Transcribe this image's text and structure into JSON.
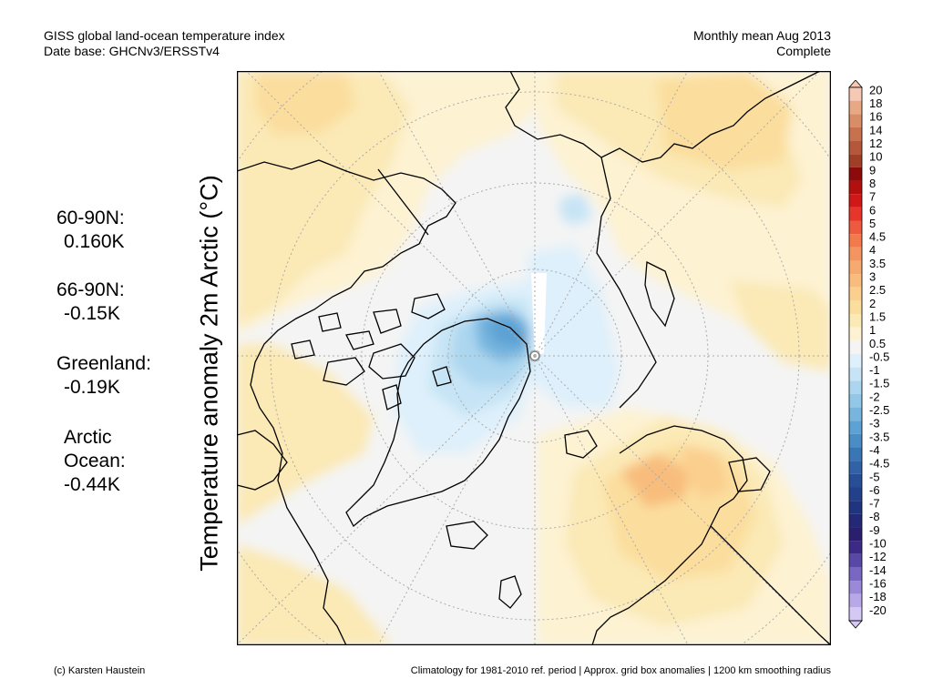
{
  "header": {
    "title": "GISS global land-ocean temperature index",
    "database": "Date base: GHCNv3/ERSSTv4",
    "period": "Monthly mean Aug 2013",
    "status": "Complete"
  },
  "stats": [
    {
      "label": "60-90N:",
      "value": "0.160K"
    },
    {
      "label": "66-90N:",
      "value": "-0.15K"
    },
    {
      "label": "Greenland:",
      "value": "-0.19K"
    },
    {
      "label1": "Arctic",
      "label2": "Ocean:",
      "value": "-0.44K"
    }
  ],
  "ylabel": "Temperature anomaly 2m Arctic (°C)",
  "colorbar": {
    "labels": [
      "20",
      "18",
      "16",
      "14",
      "12",
      "10",
      "9",
      "8",
      "7",
      "6",
      "5",
      "4.5",
      "4",
      "3.5",
      "3",
      "2.5",
      "2",
      "1.5",
      "1",
      "0.5",
      "-0.5",
      "-1",
      "-1.5",
      "-2",
      "-2.5",
      "-3",
      "-3.5",
      "-4",
      "-4.5",
      "-5",
      "-6",
      "-7",
      "-8",
      "-9",
      "-10",
      "-12",
      "-14",
      "-16",
      "-18",
      "-20"
    ],
    "colors": [
      "#f6c9b5",
      "#e7a886",
      "#d98d67",
      "#c8714d",
      "#b4573a",
      "#9f3f28",
      "#8c0a0a",
      "#b30f0f",
      "#d11818",
      "#e6362b",
      "#ee5a3f",
      "#f27a4c",
      "#f49561",
      "#f6aa70",
      "#f8bd7d",
      "#fbcf8e",
      "#fbde9e",
      "#fbe9b6",
      "#fdf2d2",
      "#f4f4f4",
      "#def0fb",
      "#c6e4f5",
      "#acd6ef",
      "#92c7e8",
      "#77b5df",
      "#5da2d4",
      "#4a8cc6",
      "#3a76b6",
      "#3161a6",
      "#294e98",
      "#23418a",
      "#203580",
      "#232877",
      "#2a1f6f",
      "#3d2a86",
      "#5a48a8",
      "#7a67c3",
      "#9a88d8",
      "#b9a8e8",
      "#d6c8f4"
    ]
  },
  "footer": {
    "credit": "(c) Karsten Haustein",
    "note": "Climatology for 1981-2010 ref. period | Approx. grid box anomalies | 1200 km smoothing radius"
  }
}
